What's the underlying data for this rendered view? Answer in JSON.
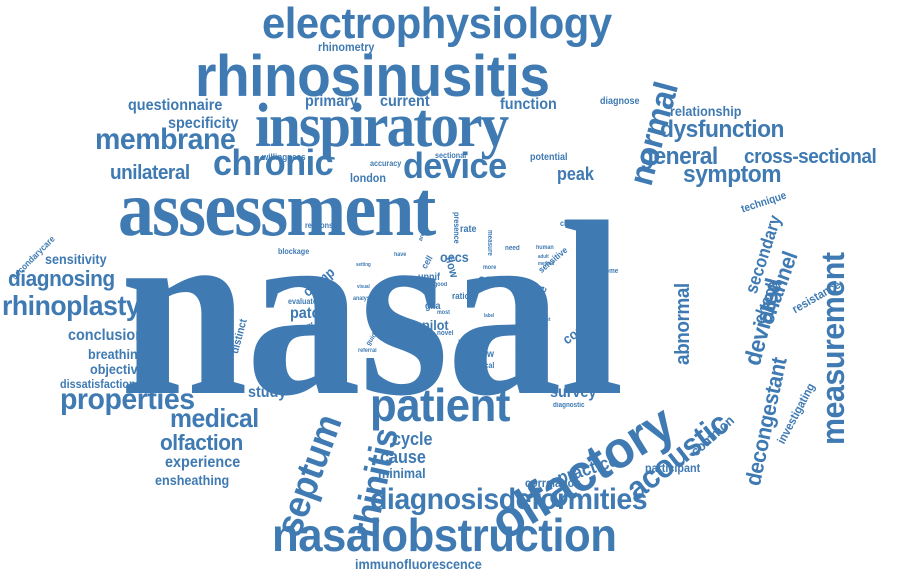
{
  "word_color": "#3f7ab2",
  "words": [
    {
      "text": "nasal"
    },
    {
      "text": "assessment"
    },
    {
      "text": "inspiratory"
    },
    {
      "text": "rhinosinusitis"
    },
    {
      "text": "electrophysiology"
    },
    {
      "text": "nasalobstruction"
    },
    {
      "text": "patient"
    },
    {
      "text": "olfactory"
    },
    {
      "text": "diagnosisdeformities"
    },
    {
      "text": "device"
    },
    {
      "text": "chronic"
    },
    {
      "text": "membrane"
    },
    {
      "text": "septum"
    },
    {
      "text": "rhinitis"
    },
    {
      "text": "normal"
    },
    {
      "text": "measurement"
    },
    {
      "text": "acoustic"
    },
    {
      "text": "properties"
    },
    {
      "text": "medical"
    },
    {
      "text": "rhinoplasty"
    },
    {
      "text": "dysfunction"
    },
    {
      "text": "general"
    },
    {
      "text": "cross-sectional"
    },
    {
      "text": "symptom"
    },
    {
      "text": "olfaction"
    },
    {
      "text": "diagnosing"
    },
    {
      "text": "questionnaire"
    },
    {
      "text": "specificity"
    },
    {
      "text": "unilateral"
    },
    {
      "text": "primary"
    },
    {
      "text": "current"
    },
    {
      "text": "function"
    },
    {
      "text": "relationship"
    },
    {
      "text": "peak"
    },
    {
      "text": "experience"
    },
    {
      "text": "ensheathing"
    },
    {
      "text": "immunofluorescence"
    },
    {
      "text": "decongestant"
    },
    {
      "text": "deviated"
    },
    {
      "text": "channel"
    },
    {
      "text": "secondary"
    },
    {
      "text": "check"
    },
    {
      "text": "abnormal"
    },
    {
      "text": "sensitivity"
    },
    {
      "text": "conclusion"
    },
    {
      "text": "breathing"
    },
    {
      "text": "objective"
    },
    {
      "text": "dissatisfaction"
    },
    {
      "text": "study"
    },
    {
      "text": "cycle"
    },
    {
      "text": "cause"
    },
    {
      "text": "minimal"
    },
    {
      "text": "survey"
    },
    {
      "text": "practice"
    },
    {
      "text": "participant"
    },
    {
      "text": "correlation"
    },
    {
      "text": "common"
    },
    {
      "text": "investigating"
    },
    {
      "text": "resistance"
    },
    {
      "text": "technique"
    },
    {
      "text": "rhinometry"
    },
    {
      "text": "diagnose"
    },
    {
      "text": "london"
    },
    {
      "text": "willingness"
    },
    {
      "text": "accuracy"
    },
    {
      "text": "sectional"
    },
    {
      "text": "potential"
    },
    {
      "text": "patch"
    },
    {
      "text": "pilot"
    },
    {
      "text": "control"
    },
    {
      "text": "clamp"
    },
    {
      "text": "distinct"
    },
    {
      "text": "care"
    },
    {
      "text": "oecs"
    },
    {
      "text": "score"
    },
    {
      "text": "secondarycare"
    },
    {
      "text": "response"
    },
    {
      "text": "blockage"
    },
    {
      "text": "evaluate"
    },
    {
      "text": "adjacent"
    },
    {
      "text": "result"
    },
    {
      "text": "airflow"
    },
    {
      "text": "clinical"
    },
    {
      "text": "neuron"
    },
    {
      "text": "referral"
    },
    {
      "text": "duration"
    },
    {
      "text": "treatment"
    },
    {
      "text": "diagnostic"
    },
    {
      "text": "change"
    },
    {
      "text": "outcome"
    },
    {
      "text": "glia"
    },
    {
      "text": "ratio"
    },
    {
      "text": "upnif"
    },
    {
      "text": "cell"
    },
    {
      "text": "flow"
    },
    {
      "text": "sensitive"
    },
    {
      "text": "numerical"
    },
    {
      "text": "guideline"
    },
    {
      "text": "analysis"
    },
    {
      "text": "novel"
    },
    {
      "text": "most"
    },
    {
      "text": "better"
    },
    {
      "text": "need"
    },
    {
      "text": "human"
    },
    {
      "text": "rate"
    },
    {
      "text": "measure"
    },
    {
      "text": "presence"
    },
    {
      "text": "area"
    },
    {
      "text": "have"
    },
    {
      "text": "setting"
    },
    {
      "text": "visual"
    },
    {
      "text": "bulb"
    },
    {
      "text": "more"
    },
    {
      "text": "adult"
    },
    {
      "text": "method"
    },
    {
      "text": "subset"
    },
    {
      "text": "label"
    },
    {
      "text": "test"
    },
    {
      "text": "good"
    }
  ]
}
